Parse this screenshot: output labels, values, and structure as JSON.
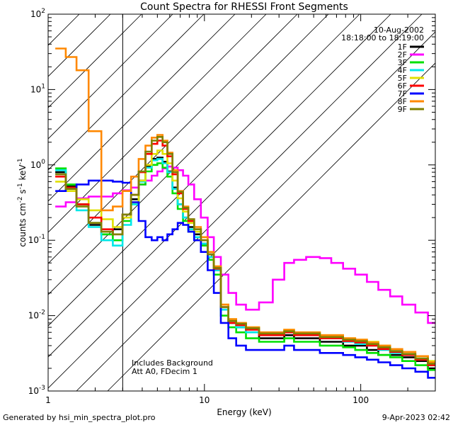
{
  "chart_data": {
    "type": "line",
    "title": "Count Spectra for RHESSI Front Segments",
    "xlabel": "Energy (keV)",
    "ylabel": "counts cm-2 s-1 keV-1",
    "xscale": "log",
    "yscale": "log",
    "xlim": [
      1,
      300
    ],
    "ylim": [
      0.001,
      100
    ],
    "x_ticks": [
      {
        "value": 1,
        "label": "1"
      },
      {
        "value": 10,
        "label": "10"
      },
      {
        "value": 100,
        "label": "100"
      }
    ],
    "y_ticks": [
      {
        "value": 0.001,
        "base": "10",
        "exp": "-3"
      },
      {
        "value": 0.01,
        "base": "10",
        "exp": "-2"
      },
      {
        "value": 0.1,
        "base": "10",
        "exp": "-1"
      },
      {
        "value": 1,
        "base": "10",
        "exp": "0"
      },
      {
        "value": 10,
        "base": "10",
        "exp": "1"
      },
      {
        "value": 100,
        "base": "10",
        "exp": "2"
      }
    ],
    "shaded_region": {
      "x_min": 1,
      "x_max": 3,
      "style": "diagonal hatch"
    },
    "info_lines": [
      "10-Aug-2002",
      "18:18:00 to 18:19:00"
    ],
    "annotations": [
      "Includes Background",
      "Att A0, FDecim 1"
    ],
    "energies": [
      1.2,
      1.4,
      1.65,
      2.0,
      2.4,
      2.8,
      3.2,
      3.6,
      4.0,
      4.4,
      4.8,
      5.2,
      5.6,
      6.0,
      6.5,
      7.0,
      7.6,
      8.2,
      9.0,
      10.0,
      11.0,
      12.0,
      13.5,
      15.0,
      17.0,
      20.0,
      25.0,
      30.0,
      35.0,
      40.0,
      50.0,
      60.0,
      70.0,
      85.0,
      100.0,
      120.0,
      140.0,
      170.0,
      200.0,
      250.0,
      290.0
    ],
    "series": [
      {
        "name": "1F",
        "color": "#000000",
        "values": [
          0.8,
          0.52,
          0.3,
          0.16,
          0.12,
          0.14,
          0.22,
          0.35,
          0.62,
          0.95,
          1.2,
          1.25,
          1.1,
          0.82,
          0.5,
          0.3,
          0.2,
          0.15,
          0.12,
          0.09,
          0.06,
          0.04,
          0.012,
          0.008,
          0.007,
          0.006,
          0.005,
          0.005,
          0.0055,
          0.005,
          0.005,
          0.0045,
          0.0045,
          0.004,
          0.004,
          0.0035,
          0.003,
          0.003,
          0.0028,
          0.0025,
          0.002
        ]
      },
      {
        "name": "2F",
        "color": "#ff00ff",
        "values": [
          0.28,
          0.32,
          0.36,
          0.38,
          0.38,
          0.42,
          0.46,
          0.5,
          0.55,
          0.62,
          0.72,
          0.82,
          0.9,
          0.95,
          0.92,
          0.85,
          0.72,
          0.55,
          0.35,
          0.2,
          0.11,
          0.06,
          0.035,
          0.02,
          0.014,
          0.012,
          0.015,
          0.03,
          0.05,
          0.055,
          0.06,
          0.058,
          0.05,
          0.042,
          0.035,
          0.028,
          0.022,
          0.018,
          0.014,
          0.011,
          0.008
        ]
      },
      {
        "name": "3F",
        "color": "#00e000",
        "values": [
          0.9,
          0.55,
          0.3,
          0.17,
          0.12,
          0.1,
          0.18,
          0.3,
          0.55,
          0.82,
          1.0,
          1.05,
          0.92,
          0.7,
          0.42,
          0.26,
          0.18,
          0.13,
          0.1,
          0.085,
          0.055,
          0.035,
          0.01,
          0.007,
          0.006,
          0.005,
          0.0045,
          0.0045,
          0.005,
          0.0045,
          0.0045,
          0.004,
          0.004,
          0.0038,
          0.0035,
          0.0032,
          0.003,
          0.0028,
          0.0025,
          0.0022,
          0.0019
        ]
      },
      {
        "name": "4F",
        "color": "#00e8e8",
        "values": [
          0.85,
          0.45,
          0.25,
          0.15,
          0.1,
          0.085,
          0.16,
          0.3,
          0.6,
          0.92,
          1.15,
          1.2,
          1.05,
          0.8,
          0.48,
          0.3,
          0.2,
          0.14,
          0.11,
          0.09,
          0.06,
          0.04,
          0.012,
          0.008,
          0.007,
          0.006,
          0.0055,
          0.0055,
          0.006,
          0.0055,
          0.0055,
          0.005,
          0.005,
          0.0045,
          0.0042,
          0.004,
          0.0035,
          0.0032,
          0.003,
          0.0026,
          0.0022
        ]
      },
      {
        "name": "5F",
        "color": "#e0e000",
        "values": [
          0.6,
          0.45,
          0.35,
          0.25,
          0.19,
          0.15,
          0.2,
          0.32,
          0.62,
          1.0,
          1.4,
          1.55,
          1.4,
          1.05,
          0.62,
          0.36,
          0.24,
          0.17,
          0.13,
          0.1,
          0.065,
          0.045,
          0.014,
          0.009,
          0.008,
          0.007,
          0.006,
          0.006,
          0.0065,
          0.006,
          0.006,
          0.0055,
          0.0055,
          0.005,
          0.0048,
          0.0045,
          0.004,
          0.0036,
          0.0033,
          0.0029,
          0.0025
        ]
      },
      {
        "name": "6F",
        "color": "#ff0000",
        "values": [
          0.7,
          0.5,
          0.3,
          0.2,
          0.14,
          0.12,
          0.22,
          0.4,
          0.8,
          1.4,
          1.9,
          2.1,
          1.8,
          1.3,
          0.75,
          0.42,
          0.26,
          0.18,
          0.14,
          0.1,
          0.065,
          0.042,
          0.013,
          0.008,
          0.0075,
          0.0065,
          0.0055,
          0.0055,
          0.006,
          0.0055,
          0.0055,
          0.005,
          0.005,
          0.0046,
          0.0044,
          0.004,
          0.0036,
          0.0033,
          0.003,
          0.0026,
          0.0022
        ]
      },
      {
        "name": "7F",
        "color": "#0000ff",
        "values": [
          0.45,
          0.48,
          0.55,
          0.62,
          0.62,
          0.6,
          0.58,
          0.32,
          0.18,
          0.11,
          0.1,
          0.11,
          0.1,
          0.12,
          0.14,
          0.17,
          0.16,
          0.13,
          0.1,
          0.07,
          0.04,
          0.02,
          0.008,
          0.005,
          0.004,
          0.0035,
          0.0035,
          0.0035,
          0.004,
          0.0035,
          0.0035,
          0.0032,
          0.0032,
          0.003,
          0.0028,
          0.0026,
          0.0024,
          0.0022,
          0.002,
          0.0018,
          0.0015
        ]
      },
      {
        "name": "8F",
        "color": "#ff8800",
        "values": [
          35,
          27,
          18,
          2.8,
          0.25,
          0.28,
          0.45,
          0.7,
          1.2,
          1.8,
          2.3,
          2.5,
          2.1,
          1.45,
          0.85,
          0.45,
          0.28,
          0.19,
          0.15,
          0.11,
          0.07,
          0.045,
          0.014,
          0.009,
          0.008,
          0.007,
          0.006,
          0.006,
          0.0065,
          0.006,
          0.006,
          0.0055,
          0.0055,
          0.005,
          0.0048,
          0.0044,
          0.004,
          0.0036,
          0.0033,
          0.0029,
          0.0024
        ]
      },
      {
        "name": "9F",
        "color": "#808000",
        "values": [
          0.75,
          0.48,
          0.28,
          0.17,
          0.13,
          0.12,
          0.22,
          0.4,
          0.82,
          1.5,
          2.1,
          2.35,
          2.0,
          1.4,
          0.8,
          0.44,
          0.27,
          0.19,
          0.14,
          0.1,
          0.065,
          0.043,
          0.013,
          0.0085,
          0.0078,
          0.0068,
          0.0058,
          0.0058,
          0.0062,
          0.0058,
          0.0058,
          0.0052,
          0.0052,
          0.0048,
          0.0046,
          0.0042,
          0.0038,
          0.0034,
          0.0031,
          0.0027,
          0.0023
        ]
      }
    ]
  },
  "footer": {
    "left": "Generated by hsi_min_spectra_plot.pro",
    "right": "9-Apr-2023 02:42"
  }
}
